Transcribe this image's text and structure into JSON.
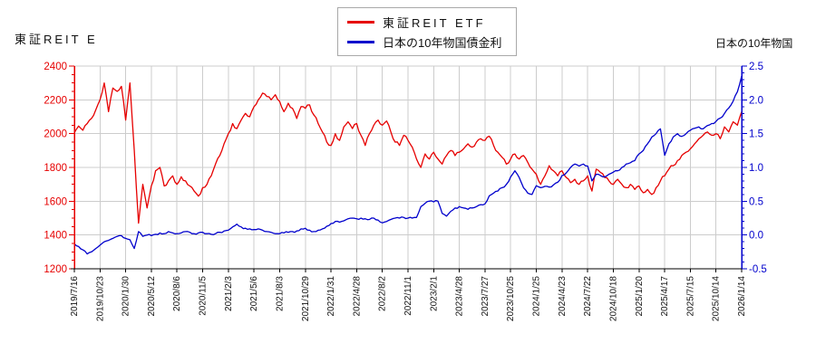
{
  "titles": {
    "left": "東証REIT E",
    "right": "日本の10年物国"
  },
  "legend": {
    "items": [
      {
        "label": "東証REIT ETF",
        "color": "#e60000"
      },
      {
        "label": "日本の10年物国債金利",
        "color": "#0000cc"
      }
    ]
  },
  "chart_data": {
    "type": "line",
    "title": "",
    "grid": true,
    "grid_color": "#cccccc",
    "background": "#ffffff",
    "x_tick_labels": [
      "2019/7/16",
      "2019/10/23",
      "2020/1/30",
      "2020/5/12",
      "2020/8/6",
      "2020/11/5",
      "2021/2/3",
      "2021/5/6",
      "2021/8/3",
      "2021/10/29",
      "2022/1/31",
      "2022/4/28",
      "2022/8/2",
      "2022/11/1",
      "2023/2/1",
      "2023/4/28",
      "2023/7/27",
      "2023/10/25",
      "2024/1/25",
      "2024/4/23",
      "2024/7/22",
      "2024/10/18",
      "2025/1/20",
      "2025/4/17",
      "2025/7/15",
      "2025/10/14",
      "2026/1/14"
    ],
    "left_axis": {
      "label": "東証REIT ETF",
      "min": 1200,
      "max": 2400,
      "step": 200,
      "minor_step": 50,
      "color": "#e60000",
      "tick_labels": [
        "2400",
        "2200",
        "2000",
        "1800",
        "1600",
        "1400",
        "1200"
      ]
    },
    "right_axis": {
      "label": "日本の10年物国債金利",
      "min": -0.5,
      "max": 2.5,
      "step": 0.5,
      "minor_step": 0.1,
      "color": "#0000cc",
      "tick_labels": [
        "2.5",
        "2.0",
        "1.5",
        "1.0",
        "0.5",
        "0.0",
        "-0.5"
      ]
    },
    "series": [
      {
        "name": "東証REIT ETF",
        "axis": "left",
        "color": "#e60000",
        "values": [
          2005,
          2045,
          2020,
          2060,
          2090,
          2140,
          2200,
          2300,
          2130,
          2270,
          2250,
          2280,
          2080,
          2300,
          1900,
          1470,
          1700,
          1560,
          1690,
          1780,
          1800,
          1690,
          1720,
          1750,
          1700,
          1745,
          1720,
          1690,
          1660,
          1630,
          1680,
          1700,
          1750,
          1820,
          1870,
          1940,
          2000,
          2060,
          2030,
          2080,
          2120,
          2100,
          2160,
          2200,
          2240,
          2220,
          2200,
          2230,
          2190,
          2130,
          2180,
          2150,
          2090,
          2160,
          2150,
          2170,
          2110,
          2060,
          2010,
          1950,
          1930,
          2000,
          1960,
          2040,
          2070,
          2030,
          2060,
          1990,
          1930,
          2000,
          2050,
          2080,
          2050,
          2075,
          2010,
          1950,
          1930,
          1990,
          1960,
          1920,
          1850,
          1800,
          1880,
          1850,
          1890,
          1850,
          1820,
          1870,
          1900,
          1870,
          1890,
          1910,
          1940,
          1920,
          1950,
          1970,
          1960,
          1985,
          1930,
          1890,
          1860,
          1820,
          1850,
          1880,
          1850,
          1870,
          1830,
          1790,
          1760,
          1700,
          1750,
          1810,
          1780,
          1750,
          1780,
          1740,
          1710,
          1730,
          1700,
          1720,
          1750,
          1660,
          1790,
          1770,
          1740,
          1720,
          1700,
          1730,
          1700,
          1680,
          1700,
          1670,
          1690,
          1650,
          1670,
          1640,
          1680,
          1720,
          1750,
          1790,
          1810,
          1840,
          1870,
          1890,
          1910,
          1940,
          1970,
          1990,
          2010,
          1990,
          2000,
          1970,
          2040,
          2010,
          2070,
          2050,
          2130
        ]
      },
      {
        "name": "日本の10年物国債金利",
        "axis": "right",
        "color": "#0000cc",
        "values": [
          -0.13,
          -0.17,
          -0.22,
          -0.28,
          -0.25,
          -0.2,
          -0.15,
          -0.1,
          -0.08,
          -0.05,
          -0.02,
          -0.01,
          -0.05,
          -0.07,
          -0.2,
          0.05,
          -0.02,
          0.0,
          -0.01,
          0.01,
          0.03,
          0.02,
          0.05,
          0.03,
          0.02,
          0.03,
          0.05,
          0.04,
          0.02,
          0.03,
          0.04,
          0.02,
          0.01,
          0.02,
          0.04,
          0.06,
          0.07,
          0.12,
          0.16,
          0.12,
          0.1,
          0.09,
          0.08,
          0.09,
          0.07,
          0.05,
          0.04,
          0.02,
          0.02,
          0.03,
          0.04,
          0.05,
          0.06,
          0.09,
          0.1,
          0.07,
          0.05,
          0.07,
          0.09,
          0.13,
          0.17,
          0.2,
          0.19,
          0.21,
          0.24,
          0.25,
          0.24,
          0.25,
          0.24,
          0.23,
          0.25,
          0.22,
          0.18,
          0.2,
          0.23,
          0.25,
          0.25,
          0.26,
          0.25,
          0.25,
          0.26,
          0.42,
          0.47,
          0.5,
          0.49,
          0.5,
          0.32,
          0.28,
          0.35,
          0.4,
          0.42,
          0.4,
          0.38,
          0.4,
          0.42,
          0.45,
          0.46,
          0.58,
          0.62,
          0.65,
          0.7,
          0.75,
          0.86,
          0.95,
          0.85,
          0.7,
          0.62,
          0.6,
          0.73,
          0.7,
          0.72,
          0.71,
          0.74,
          0.78,
          0.88,
          0.92,
          1.0,
          1.05,
          1.02,
          1.05,
          1.02,
          0.8,
          0.9,
          0.88,
          0.86,
          0.9,
          0.93,
          0.95,
          1.0,
          1.05,
          1.07,
          1.1,
          1.2,
          1.25,
          1.35,
          1.45,
          1.5,
          1.57,
          1.18,
          1.35,
          1.45,
          1.5,
          1.46,
          1.5,
          1.55,
          1.58,
          1.6,
          1.57,
          1.62,
          1.65,
          1.68,
          1.73,
          1.8,
          1.88,
          1.98,
          2.12,
          2.35
        ]
      }
    ]
  }
}
